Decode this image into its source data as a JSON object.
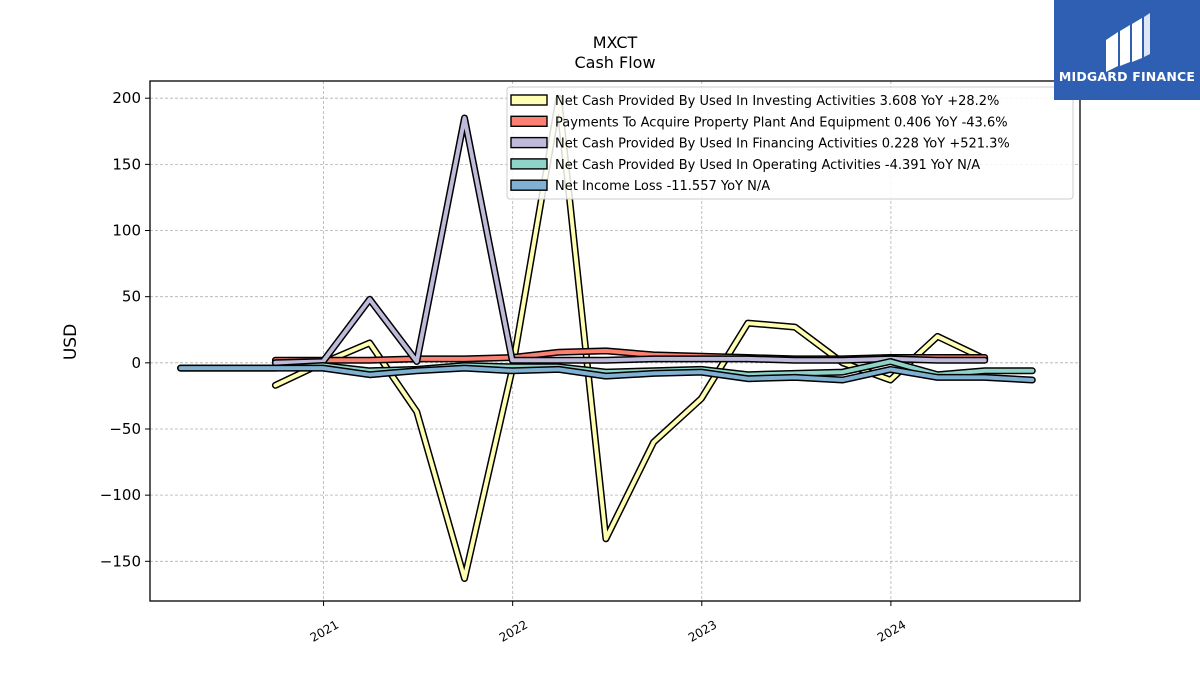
{
  "chart_data": {
    "type": "line",
    "title": "MXCT",
    "subtitle": "Cash Flow",
    "xlabel": "",
    "ylabel": "USD",
    "x_dates": [
      "2020-03-31",
      "2020-06-30",
      "2020-09-30",
      "2020-12-31",
      "2021-03-31",
      "2021-06-30",
      "2021-09-30",
      "2021-12-31",
      "2022-03-31",
      "2022-06-30",
      "2022-09-30",
      "2022-12-31",
      "2023-03-31",
      "2023-06-30",
      "2023-09-30",
      "2023-12-31",
      "2024-03-31",
      "2024-06-30",
      "2024-09-30"
    ],
    "x_ticks": [
      {
        "date": "2021-01-01",
        "label": "2021"
      },
      {
        "date": "2022-01-01",
        "label": "2022"
      },
      {
        "date": "2023-01-01",
        "label": "2023"
      },
      {
        "date": "2024-01-01",
        "label": "2024"
      }
    ],
    "xlim": [
      "2020-02-01",
      "2024-12-31"
    ],
    "ylim": [
      -180,
      213
    ],
    "y_ticks": [
      200,
      150,
      100,
      50,
      0,
      -50,
      -100,
      -150
    ],
    "y_tick_labels": [
      "200",
      "150",
      "100",
      "50",
      "0",
      "−50",
      "−100",
      "−150"
    ],
    "grid": true,
    "legend_position": "top-right",
    "series": [
      {
        "name": "Net Cash Provided By Used In Investing Activities  3.608 YoY +28.2%",
        "color": "#ffffb3",
        "values": [
          null,
          null,
          -17,
          0,
          15,
          -37,
          -163,
          -5,
          200,
          -133,
          -60,
          -27,
          30,
          27,
          0,
          -13,
          20,
          3,
          null
        ]
      },
      {
        "name": "Payments To Acquire Property Plant And Equipment  0.406 YoY -43.6%",
        "color": "#fb8072",
        "values": [
          null,
          null,
          2,
          2,
          2,
          3,
          3,
          4,
          8,
          9,
          6,
          5,
          4,
          3,
          3,
          4,
          4,
          4,
          null
        ]
      },
      {
        "name": "Net Cash Provided By Used In Financing Activities  0.228 YoY +521.3%",
        "color": "#bebada",
        "values": [
          null,
          null,
          0,
          1,
          48,
          1,
          185,
          2,
          2,
          2,
          3,
          3,
          3,
          2,
          2,
          3,
          2,
          2,
          null
        ]
      },
      {
        "name": "Net Cash Provided By Used In Operating Activities  -4.391 YoY N/A",
        "color": "#8dd3c7",
        "values": [
          -4,
          -4,
          -4,
          -2,
          -6,
          -5,
          -2,
          -3,
          -3,
          -7,
          -6,
          -5,
          -9,
          -8,
          -7,
          1,
          -9,
          -6,
          -6
        ]
      },
      {
        "name": "Net Income Loss  -11.557 YoY N/A",
        "color": "#80b1d3",
        "values": [
          -4,
          -4,
          -4,
          -4,
          -9,
          -6,
          -4,
          -6,
          -5,
          -10,
          -8,
          -7,
          -12,
          -11,
          -13,
          -5,
          -11,
          -11,
          -13
        ]
      }
    ]
  },
  "branding": {
    "name": "MIDGARD FINANCE",
    "logo_icon": "midgard-logo-icon",
    "color": "#2f5fb3"
  }
}
